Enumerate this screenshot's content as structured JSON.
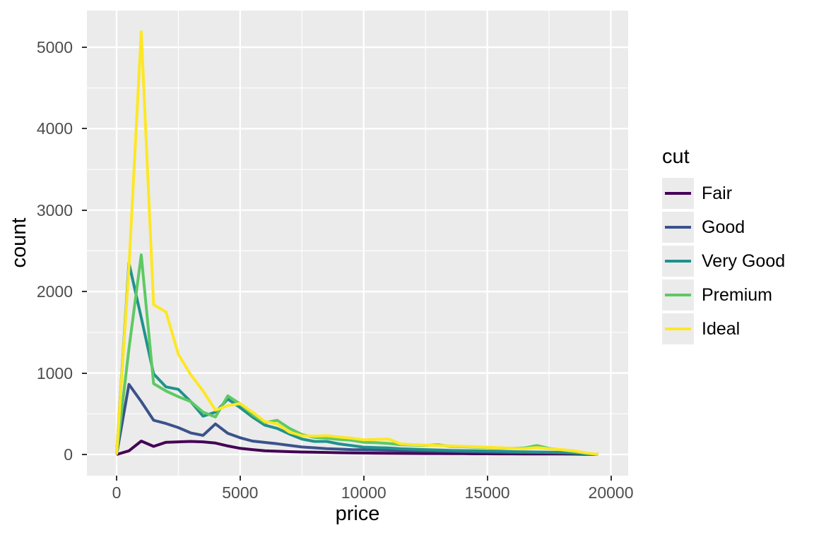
{
  "figure": {
    "background": "#FFFFFF",
    "panel_background": "#EBEBEB",
    "grid_color": "#FFFFFF",
    "tick_label_color": "#4D4D4D",
    "tick_mark_color": "#333333"
  },
  "chart_data": {
    "type": "line",
    "subtype": "frequency-polygon",
    "title": "",
    "xlabel": "price",
    "ylabel": "count",
    "legend": {
      "title": "cut",
      "position": "right"
    },
    "grid": true,
    "xlim": [
      -1200,
      20700
    ],
    "ylim": [
      -260,
      5450
    ],
    "x_ticks": [
      0,
      5000,
      10000,
      15000,
      20000
    ],
    "y_ticks": [
      0,
      1000,
      2000,
      3000,
      4000,
      5000
    ],
    "x_minor": [
      2500,
      7500,
      12500,
      17500
    ],
    "y_minor": [
      500,
      1500,
      2500,
      3500,
      4500
    ],
    "bin_width": 500,
    "x": [
      0,
      500,
      1000,
      1500,
      2000,
      2500,
      3000,
      3500,
      4000,
      4500,
      5000,
      5500,
      6000,
      6500,
      7000,
      7500,
      8000,
      8500,
      9000,
      9500,
      10000,
      10500,
      11000,
      11500,
      12000,
      12500,
      13000,
      13500,
      14000,
      14500,
      15000,
      15500,
      16000,
      16500,
      17000,
      17500,
      18000,
      18500,
      19000,
      19500
    ],
    "series": [
      {
        "name": "Fair",
        "color": "#440154",
        "values": [
          0,
          45,
          165,
          100,
          150,
          155,
          160,
          155,
          140,
          105,
          75,
          60,
          45,
          40,
          35,
          30,
          28,
          25,
          22,
          20,
          18,
          16,
          15,
          14,
          13,
          12,
          12,
          11,
          10,
          9,
          9,
          8,
          8,
          7,
          7,
          6,
          6,
          5,
          2,
          0
        ]
      },
      {
        "name": "Good",
        "color": "#3B528B",
        "values": [
          0,
          860,
          650,
          420,
          380,
          330,
          265,
          235,
          375,
          260,
          205,
          165,
          148,
          132,
          112,
          92,
          82,
          72,
          66,
          60,
          58,
          55,
          52,
          48,
          45,
          42,
          40,
          38,
          35,
          32,
          30,
          28,
          26,
          25,
          24,
          22,
          20,
          15,
          6,
          0
        ]
      },
      {
        "name": "Very Good",
        "color": "#21918C",
        "values": [
          0,
          2350,
          1680,
          990,
          830,
          800,
          650,
          470,
          520,
          680,
          575,
          460,
          360,
          320,
          250,
          190,
          160,
          160,
          130,
          110,
          90,
          85,
          80,
          70,
          65,
          60,
          55,
          50,
          48,
          45,
          42,
          40,
          35,
          32,
          30,
          28,
          25,
          18,
          8,
          0
        ]
      },
      {
        "name": "Premium",
        "color": "#5EC962",
        "values": [
          0,
          1300,
          2450,
          870,
          780,
          710,
          650,
          520,
          460,
          720,
          620,
          490,
          390,
          420,
          320,
          245,
          210,
          200,
          185,
          175,
          150,
          145,
          135,
          120,
          115,
          110,
          120,
          100,
          95,
          90,
          85,
          80,
          75,
          80,
          110,
          75,
          55,
          35,
          15,
          0
        ]
      },
      {
        "name": "Ideal",
        "color": "#FDE725",
        "values": [
          0,
          2300,
          5190,
          1840,
          1750,
          1230,
          980,
          780,
          545,
          600,
          625,
          520,
          405,
          375,
          275,
          230,
          225,
          230,
          215,
          200,
          180,
          185,
          190,
          130,
          120,
          115,
          110,
          105,
          100,
          95,
          88,
          82,
          75,
          72,
          85,
          70,
          60,
          45,
          20,
          0
        ]
      }
    ]
  }
}
